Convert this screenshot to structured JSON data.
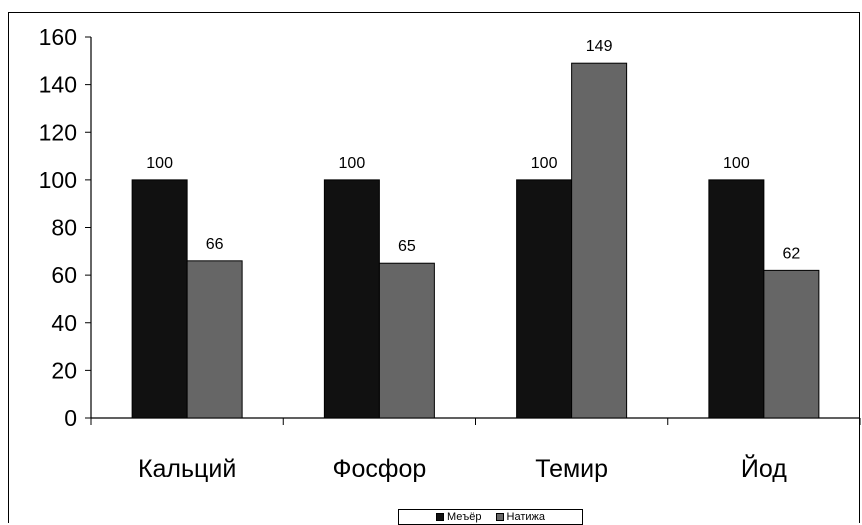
{
  "chart_data": {
    "type": "bar",
    "categories": [
      "Кальций",
      "Фосфор",
      "Темир",
      "Йод"
    ],
    "series": [
      {
        "name": "Меъёр",
        "values": [
          100,
          100,
          100,
          100
        ],
        "color": "#111111"
      },
      {
        "name": "Натижа",
        "values": [
          66,
          65,
          149,
          62
        ],
        "color": "#666666"
      }
    ],
    "ylim": [
      0,
      160
    ],
    "yticks": [
      0,
      20,
      40,
      60,
      80,
      100,
      120,
      140,
      160
    ],
    "grid": false,
    "legend_position": "bottom",
    "title": "",
    "xlabel": "",
    "ylabel": ""
  }
}
